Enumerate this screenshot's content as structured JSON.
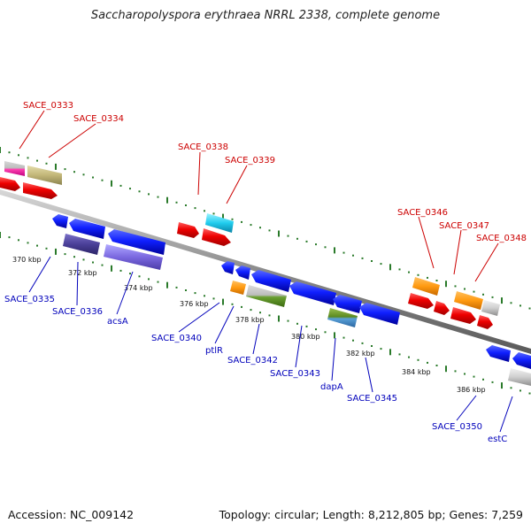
{
  "title": "Saccharopolyspora erythraea NRRL 2338, complete genome",
  "footer": {
    "accession": "Accession: NC_009142",
    "summary": "Topology: circular; Length: 8,212,805 bp; Genes: 7,259"
  },
  "colors": {
    "backbone": "#8a8a8a",
    "forward_label": "#cc0000",
    "reverse_label": "#0000bb",
    "tick": "#2a7a2a"
  },
  "scale": {
    "unit": "kbp",
    "labels": [
      "370 kbp",
      "372 kbp",
      "374 kbp",
      "376 kbp",
      "378 kbp",
      "380 kbp",
      "382 kbp",
      "384 kbp",
      "386 kbp"
    ]
  },
  "genes": [
    {
      "name": "SACE_0333",
      "strand": "+"
    },
    {
      "name": "SACE_0334",
      "strand": "+"
    },
    {
      "name": "SACE_0338",
      "strand": "+"
    },
    {
      "name": "SACE_0339",
      "strand": "+"
    },
    {
      "name": "SACE_0346",
      "strand": "+"
    },
    {
      "name": "SACE_0347",
      "strand": "+"
    },
    {
      "name": "SACE_0348",
      "strand": "+"
    },
    {
      "name": "SACE_0335",
      "strand": "-"
    },
    {
      "name": "SACE_0336",
      "strand": "-"
    },
    {
      "name": "acsA",
      "strand": "-"
    },
    {
      "name": "SACE_0340",
      "strand": "-"
    },
    {
      "name": "ptlR",
      "strand": "-"
    },
    {
      "name": "SACE_0342",
      "strand": "-"
    },
    {
      "name": "SACE_0343",
      "strand": "-"
    },
    {
      "name": "dapA",
      "strand": "-"
    },
    {
      "name": "SACE_0345",
      "strand": "-"
    },
    {
      "name": "SACE_0350",
      "strand": "-"
    },
    {
      "name": "estC",
      "strand": "-"
    }
  ]
}
